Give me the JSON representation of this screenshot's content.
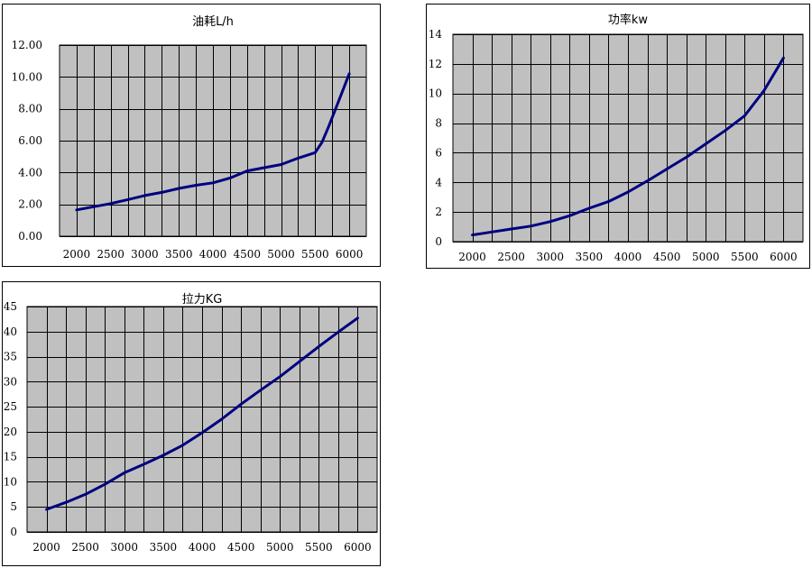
{
  "colors": {
    "plot_bg": "#c0c0c0",
    "grid": "#000000",
    "line": "#000080",
    "frame": "#000000"
  },
  "chart_data": [
    {
      "id": "fuel",
      "type": "line",
      "title": "油耗L/h",
      "xlabel": "",
      "ylabel": "",
      "x_ticks": [
        "2000",
        "2500",
        "3000",
        "3500",
        "4000",
        "4500",
        "5000",
        "5500",
        "6000"
      ],
      "y_ticks": [
        "0.00",
        "2.00",
        "4.00",
        "6.00",
        "8.00",
        "10.00",
        "12.00"
      ],
      "xlim": [
        1750,
        6250
      ],
      "ylim": [
        0,
        12
      ],
      "grid": true,
      "series": [
        {
          "x": [
            2000,
            2250,
            2500,
            2750,
            3000,
            3250,
            3500,
            3750,
            4000,
            4250,
            4500,
            4750,
            5000,
            5250,
            5500,
            5600,
            5700,
            5800,
            5900,
            6000
          ],
          "y": [
            1.65,
            1.85,
            2.05,
            2.3,
            2.55,
            2.75,
            3.0,
            3.2,
            3.35,
            3.65,
            4.1,
            4.3,
            4.5,
            4.9,
            5.25,
            5.9,
            6.9,
            8.0,
            9.1,
            10.2
          ]
        }
      ]
    },
    {
      "id": "power",
      "type": "line",
      "title": "功率kw",
      "xlabel": "",
      "ylabel": "",
      "x_ticks": [
        "2000",
        "2500",
        "3000",
        "3500",
        "4000",
        "4500",
        "5000",
        "5500",
        "6000"
      ],
      "y_ticks": [
        "0",
        "2",
        "4",
        "6",
        "8",
        "10",
        "12",
        "14"
      ],
      "xlim": [
        1750,
        6250
      ],
      "ylim": [
        0,
        14
      ],
      "grid": true,
      "series": [
        {
          "x": [
            2000,
            2250,
            2500,
            2750,
            3000,
            3250,
            3500,
            3750,
            4000,
            4250,
            4500,
            4750,
            5000,
            5250,
            5500,
            5750,
            6000
          ],
          "y": [
            0.45,
            0.65,
            0.85,
            1.05,
            1.35,
            1.75,
            2.25,
            2.7,
            3.35,
            4.1,
            4.9,
            5.7,
            6.6,
            7.5,
            8.5,
            10.2,
            12.4
          ]
        }
      ]
    },
    {
      "id": "pull",
      "type": "line",
      "title": "拉力KG",
      "xlabel": "",
      "ylabel": "",
      "x_ticks": [
        "2000",
        "2500",
        "3000",
        "3500",
        "4000",
        "4500",
        "5000",
        "5500",
        "6000"
      ],
      "y_ticks": [
        "0",
        "5",
        "10",
        "15",
        "20",
        "25",
        "30",
        "35",
        "40",
        "45"
      ],
      "xlim": [
        1750,
        6250
      ],
      "ylim": [
        0,
        45
      ],
      "grid": true,
      "series": [
        {
          "x": [
            2000,
            2250,
            2500,
            2750,
            3000,
            3250,
            3500,
            3750,
            4000,
            4250,
            4500,
            4750,
            5000,
            5250,
            5500,
            5750,
            6000
          ],
          "y": [
            4.5,
            5.9,
            7.5,
            9.5,
            11.8,
            13.5,
            15.3,
            17.3,
            19.8,
            22.5,
            25.5,
            28.3,
            31.0,
            34.0,
            37.0,
            39.9,
            42.7
          ]
        }
      ]
    }
  ]
}
